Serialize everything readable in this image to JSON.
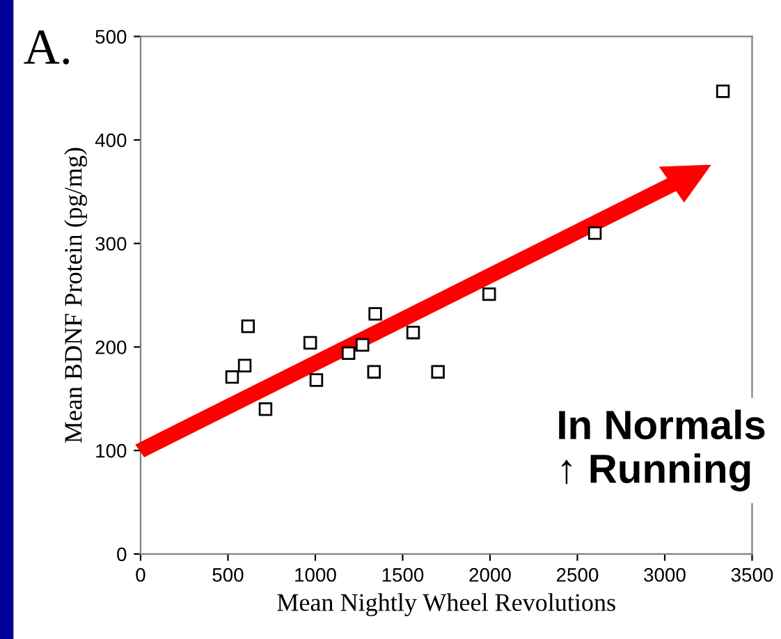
{
  "chart_data": {
    "type": "scatter",
    "title": "A.",
    "xlabel": "Mean Nightly Wheel Revolutions",
    "ylabel": "Mean BDNF Protein (pg/mg)",
    "x": [
      524,
      596,
      615,
      715,
      971,
      1006,
      1190,
      1270,
      1336,
      1343,
      1560,
      1702,
      1995,
      2600,
      3333
    ],
    "values": [
      171,
      182,
      220,
      140,
      204,
      168,
      194,
      202,
      176,
      232,
      214,
      176,
      251,
      310,
      447
    ],
    "color": "#000000",
    "marker": "square",
    "xlim": [
      0,
      3500
    ],
    "ylim": [
      0,
      500
    ],
    "xticks": [
      0,
      500,
      1000,
      1500,
      2000,
      2500,
      3000,
      3500
    ],
    "yticks": [
      0,
      100,
      200,
      300,
      400,
      500
    ],
    "grid": false,
    "annotations": [
      "In Normals\n↑ Running"
    ]
  }
}
